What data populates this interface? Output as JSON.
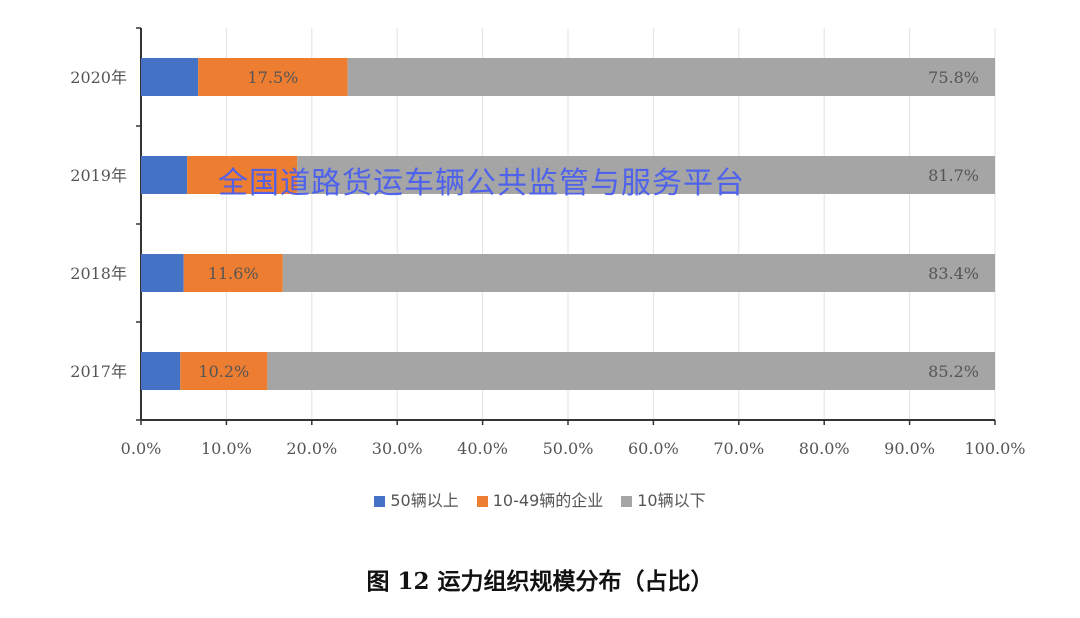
{
  "chart_data": {
    "type": "bar",
    "orientation": "horizontal",
    "stacked": true,
    "categories": [
      "2020年",
      "2019年",
      "2018年",
      "2017年"
    ],
    "series": [
      {
        "name": "50辆以上",
        "color": "#4472c4",
        "values": [
          6.7,
          5.4,
          5.0,
          4.6
        ],
        "labels": [
          null,
          null,
          null,
          null
        ]
      },
      {
        "name": "10-49辆的企业",
        "color": "#ed7d31",
        "values": [
          17.5,
          12.9,
          11.6,
          10.2
        ],
        "labels": [
          "17.5%",
          null,
          "11.6%",
          "10.2%"
        ]
      },
      {
        "name": "10辆以下",
        "color": "#a5a5a5",
        "values": [
          75.8,
          81.7,
          83.4,
          85.2
        ],
        "labels": [
          "75.8%",
          "81.7%",
          "83.4%",
          "85.2%"
        ]
      }
    ],
    "xlim": [
      0,
      100
    ],
    "xticks": [
      "0.0%",
      "10.0%",
      "20.0%",
      "30.0%",
      "40.0%",
      "50.0%",
      "60.0%",
      "70.0%",
      "80.0%",
      "90.0%",
      "100.0%"
    ],
    "grid": true,
    "legend": "bottom",
    "title": "图 12 运力组织规模分布（占比）"
  },
  "watermark": "全国道路货运车辆公共监管与服务平台"
}
